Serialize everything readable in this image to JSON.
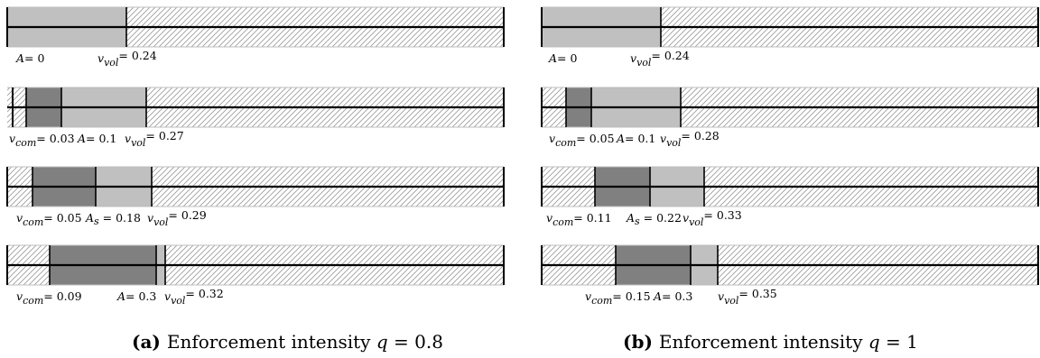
{
  "figure": {
    "panels": [
      {
        "caption": {
          "tag": "(a)",
          "text": "Enforcement intensity",
          "var": "q",
          "rel": "=",
          "val": "0.8"
        },
        "rows": [
          {
            "values": {
              "A": 0,
              "v_vol": 0.24
            },
            "labels": [
              {
                "kind": "plain",
                "text": "A= 0"
              },
              {
                "kind": "vol",
                "text": "= 0.24"
              }
            ]
          },
          {
            "values": {
              "v_com": 0.03,
              "A": 0.1,
              "v_vol": 0.27
            },
            "labels": [
              {
                "kind": "com",
                "text": "= 0.03"
              },
              {
                "kind": "plain",
                "text": "A= 0.1"
              },
              {
                "kind": "vol",
                "text": "= 0.27"
              }
            ]
          },
          {
            "values": {
              "v_com": 0.05,
              "A_s": 0.18,
              "v_vol": 0.29
            },
            "labels": [
              {
                "kind": "com",
                "text": "= 0.05"
              },
              {
                "kind": "as",
                "text": "= 0.18"
              },
              {
                "kind": "vol",
                "text": "= 0.29"
              }
            ]
          },
          {
            "values": {
              "v_com": 0.09,
              "A": 0.3,
              "v_vol": 0.32
            },
            "labels": [
              {
                "kind": "com",
                "text": "= 0.09"
              },
              {
                "kind": "plain",
                "text": "A= 0.3"
              },
              {
                "kind": "vol",
                "text": "= 0.32"
              }
            ]
          }
        ]
      },
      {
        "caption": {
          "tag": "(b)",
          "text": "Enforcement intensity",
          "var": "q",
          "rel": "=",
          "val": "1"
        },
        "rows": [
          {
            "values": {
              "A": 0,
              "v_vol": 0.24
            },
            "labels": [
              {
                "kind": "plain",
                "text": "A= 0"
              },
              {
                "kind": "vol",
                "text": "= 0.24"
              }
            ]
          },
          {
            "values": {
              "v_com": 0.05,
              "A": 0.1,
              "v_vol": 0.28
            },
            "labels": [
              {
                "kind": "com",
                "text": "= 0.05"
              },
              {
                "kind": "plain",
                "text": "A= 0.1"
              },
              {
                "kind": "vol",
                "text": "= 0.28"
              }
            ]
          },
          {
            "values": {
              "v_com": 0.11,
              "A_s": 0.22,
              "v_vol": 0.33
            },
            "labels": [
              {
                "kind": "com",
                "text": "= 0.11"
              },
              {
                "kind": "as",
                "text": "= 0.22"
              },
              {
                "kind": "vol",
                "text": "= 0.33"
              }
            ]
          },
          {
            "values": {
              "v_com": 0.15,
              "A": 0.3,
              "v_vol": 0.35
            },
            "labels": [
              {
                "kind": "com",
                "text": "= 0.15"
              },
              {
                "kind": "plain",
                "text": "A= 0.3"
              },
              {
                "kind": "vol",
                "text": "= 0.35"
              }
            ]
          }
        ]
      }
    ],
    "colors": {
      "dark": "#808080",
      "light": "#c0c0c0",
      "hatch": "#9a9a9a",
      "line": "#000000"
    }
  }
}
